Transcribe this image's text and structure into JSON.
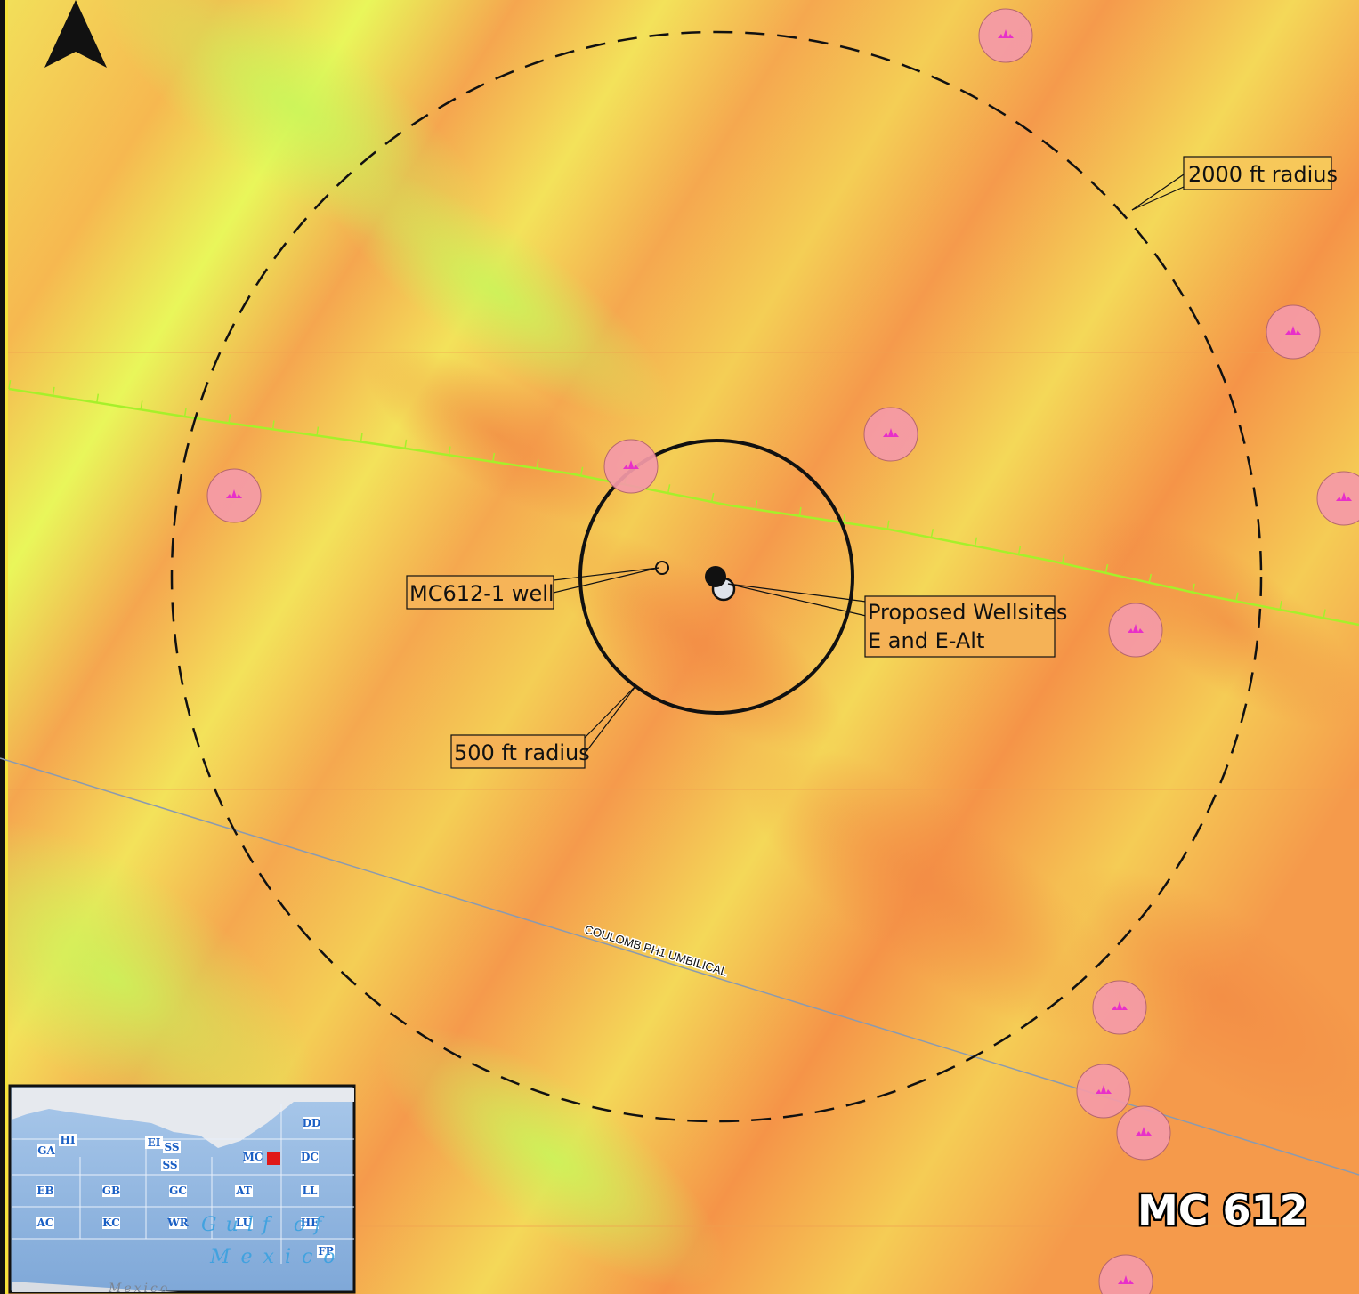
{
  "map": {
    "block_title": "MC 612",
    "labels": {
      "radius_outer": "2000 ft radius",
      "radius_inner": "500 ft radius",
      "existing_well": "MC612-1 well",
      "proposed_line1": "Proposed Wellsites",
      "proposed_line2": "E and E-Alt",
      "pipeline": "COULOMB PH1 UMBILICAL"
    },
    "icons": {
      "north_arrow": "north-arrow-icon",
      "seep_feature": "seep-feature-icon"
    },
    "colors": {
      "seep_fill": "#f59aa8",
      "seep_glyph": "#e82fc9",
      "fault_line": "#a6f02a",
      "pipeline_line": "#8a9ab0",
      "background_high": "#f7a94e",
      "background_low": "#f0f850"
    }
  },
  "inset": {
    "areas": [
      "GA",
      "HI",
      "EI",
      "SS",
      "SS",
      "MC",
      "DD",
      "DC",
      "EB",
      "GB",
      "GC",
      "AT",
      "LL",
      "AC",
      "KC",
      "WR",
      "LU",
      "HE",
      "FP"
    ],
    "water_text_1": "Gulf of",
    "water_text_2": "Mexico",
    "land_text": "Mexico"
  }
}
